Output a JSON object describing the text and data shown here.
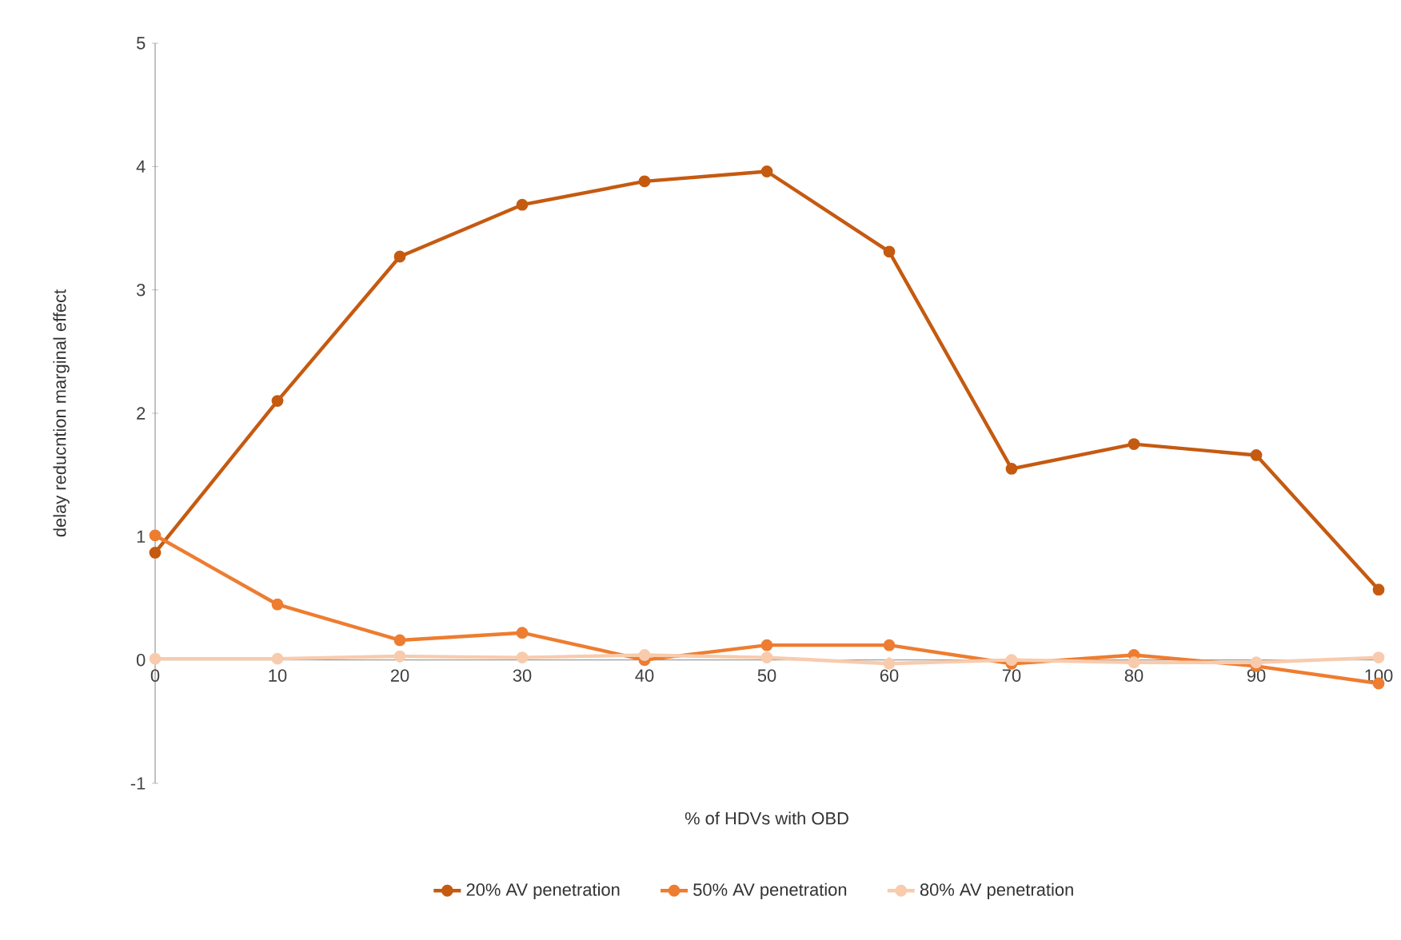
{
  "chart_data": {
    "type": "line",
    "xlabel": "% of HDVs with OBD",
    "ylabel": "delay reducntion marginal effect",
    "x": [
      0,
      10,
      20,
      30,
      40,
      50,
      60,
      70,
      80,
      90,
      100
    ],
    "series": [
      {
        "name": "20% AV penetration",
        "color": "#c55a11",
        "values": [
          0.87,
          2.1,
          3.27,
          3.69,
          3.88,
          3.96,
          3.31,
          1.55,
          1.75,
          1.66,
          0.57
        ]
      },
      {
        "name": "50% AV penetration",
        "color": "#ed7d31",
        "values": [
          1.01,
          0.45,
          0.16,
          0.22,
          0.0,
          0.12,
          0.12,
          -0.03,
          0.04,
          -0.05,
          -0.19
        ]
      },
      {
        "name": "80% AV penetration",
        "color": "#f8cbad",
        "values": [
          0.01,
          0.01,
          0.03,
          0.02,
          0.04,
          0.02,
          -0.03,
          0.0,
          -0.02,
          -0.02,
          0.02
        ]
      }
    ],
    "xlim": [
      0,
      100
    ],
    "ylim": [
      -1,
      5
    ],
    "xticks": [
      0,
      10,
      20,
      30,
      40,
      50,
      60,
      70,
      80,
      90,
      100
    ],
    "yticks": [
      -1,
      0,
      1,
      2,
      3,
      4,
      5
    ],
    "legend": "bottom",
    "marker": "circle"
  }
}
